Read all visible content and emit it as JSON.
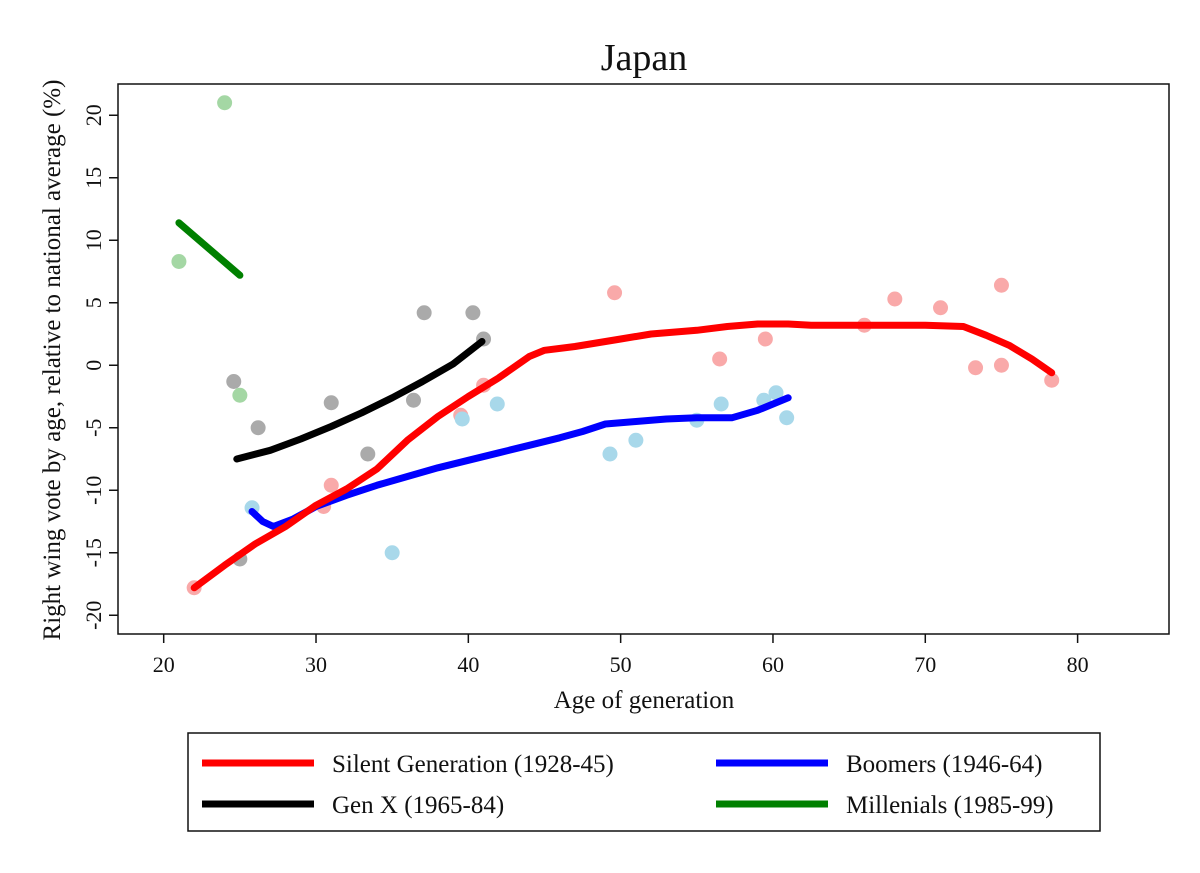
{
  "chart_data": {
    "type": "scatter",
    "title": "Japan",
    "xlabel": "Age of generation",
    "ylabel": "Right wing vote by age, relative to national average (%)",
    "xlim": [
      17,
      86
    ],
    "ylim": [
      -21.5,
      22.5
    ],
    "xticks": [
      20,
      30,
      40,
      50,
      60,
      70,
      80
    ],
    "yticks": [
      20,
      15,
      10,
      5,
      0,
      -5,
      -10,
      -15,
      -20
    ],
    "grid": false,
    "legend_position": "bottom",
    "series": [
      {
        "name": "Silent Generation (1928-45)",
        "color": "#ff0000",
        "point_color": "#f9a9a9",
        "points": [
          [
            22,
            -17.8
          ],
          [
            30.5,
            -11.3
          ],
          [
            31,
            -9.6
          ],
          [
            39.5,
            -4
          ],
          [
            41,
            -1.6
          ],
          [
            49.6,
            5.8
          ],
          [
            56.5,
            0.5
          ],
          [
            59.5,
            2.1
          ],
          [
            66,
            3.2
          ],
          [
            68,
            5.3
          ],
          [
            71,
            4.6
          ],
          [
            73.3,
            -0.2
          ],
          [
            75,
            6.4
          ],
          [
            75,
            0
          ],
          [
            78.3,
            -1.2
          ]
        ],
        "line": [
          [
            22,
            -17.8
          ],
          [
            24,
            -16
          ],
          [
            26,
            -14.3
          ],
          [
            28,
            -12.9
          ],
          [
            30,
            -11.2
          ],
          [
            32,
            -9.9
          ],
          [
            34,
            -8.3
          ],
          [
            36,
            -6
          ],
          [
            38,
            -4.1
          ],
          [
            40,
            -2.5
          ],
          [
            42,
            -1
          ],
          [
            44,
            0.7
          ],
          [
            45,
            1.2
          ],
          [
            47,
            1.5
          ],
          [
            50,
            2.1
          ],
          [
            52,
            2.5
          ],
          [
            55,
            2.8
          ],
          [
            57,
            3.1
          ],
          [
            59,
            3.3
          ],
          [
            61,
            3.3
          ],
          [
            62.5,
            3.2
          ],
          [
            65,
            3.2
          ],
          [
            68,
            3.2
          ],
          [
            70,
            3.2
          ],
          [
            72.5,
            3.1
          ],
          [
            74,
            2.4
          ],
          [
            75.5,
            1.6
          ],
          [
            77,
            0.5
          ],
          [
            78.3,
            -0.6
          ]
        ]
      },
      {
        "name": "Boomers (1946-64)",
        "color": "#0000ff",
        "point_color": "#a8d8ea",
        "points": [
          [
            25.8,
            -11.4
          ],
          [
            35,
            -15
          ],
          [
            39.6,
            -4.3
          ],
          [
            41.9,
            -3.1
          ],
          [
            49.3,
            -7.1
          ],
          [
            51,
            -6
          ],
          [
            55,
            -4.4
          ],
          [
            56.6,
            -3.1
          ],
          [
            59.4,
            -2.8
          ],
          [
            60.2,
            -2.2
          ],
          [
            60.9,
            -4.2
          ]
        ],
        "line": [
          [
            25.8,
            -11.7
          ],
          [
            26.5,
            -12.5
          ],
          [
            27.2,
            -12.9
          ],
          [
            28.5,
            -12.3
          ],
          [
            30,
            -11.3
          ],
          [
            32,
            -10.4
          ],
          [
            34,
            -9.6
          ],
          [
            36,
            -8.9
          ],
          [
            38,
            -8.2
          ],
          [
            40,
            -7.6
          ],
          [
            42,
            -7
          ],
          [
            44,
            -6.4
          ],
          [
            46,
            -5.8
          ],
          [
            47.5,
            -5.3
          ],
          [
            49,
            -4.7
          ],
          [
            51,
            -4.5
          ],
          [
            53,
            -4.3
          ],
          [
            55,
            -4.2
          ],
          [
            57.3,
            -4.2
          ],
          [
            59,
            -3.6
          ],
          [
            61,
            -2.6
          ]
        ]
      },
      {
        "name": "Gen X (1965-84)",
        "color": "#000000",
        "point_color": "#aaaaaa",
        "points": [
          [
            24.6,
            -1.3
          ],
          [
            25,
            -15.5
          ],
          [
            26.2,
            -5
          ],
          [
            31,
            -3
          ],
          [
            33.4,
            -7.1
          ],
          [
            36.4,
            -2.8
          ],
          [
            37.1,
            4.2
          ],
          [
            40.3,
            4.2
          ],
          [
            41,
            2.1
          ]
        ],
        "line": [
          [
            24.8,
            -7.5
          ],
          [
            27,
            -6.8
          ],
          [
            29,
            -5.9
          ],
          [
            31,
            -4.9
          ],
          [
            33,
            -3.8
          ],
          [
            35,
            -2.6
          ],
          [
            37,
            -1.3
          ],
          [
            39,
            0.1
          ],
          [
            40.9,
            1.9
          ]
        ]
      },
      {
        "name": "Millenials (1985-99)",
        "color": "#008000",
        "point_color": "#a4d7a4",
        "points": [
          [
            21,
            8.3
          ],
          [
            24,
            21
          ],
          [
            25,
            -2.4
          ]
        ],
        "line": [
          [
            21,
            11.4
          ],
          [
            25,
            7.2
          ]
        ]
      }
    ]
  }
}
